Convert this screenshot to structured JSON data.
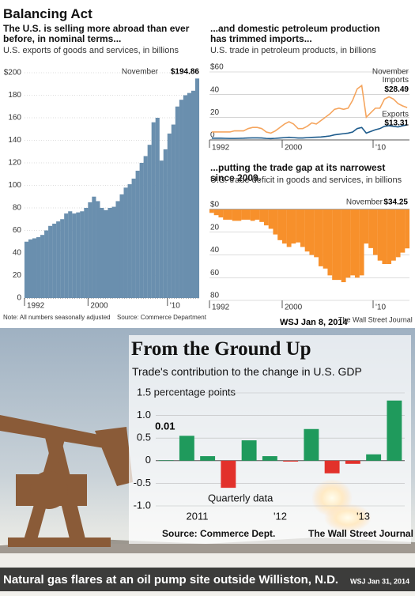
{
  "header": {
    "title": "Balancing Act",
    "note": "Note: All numbers seasonally adjusted",
    "source": "Source: Commerce Department",
    "credit": "The Wall Street Journal",
    "date": "WSJ Jan 8, 2014"
  },
  "photo": {
    "caption": "Natural gas flares at an oil pump site outside Williston, N.D.",
    "date": "WSJ Jan 31, 2014"
  },
  "chart_data": [
    {
      "type": "bar",
      "title": "The U.S. is selling more abroad than ever before, in nominal terms...",
      "subtitle": "U.S. exports of goods and services, in billions",
      "categories": [
        "1992",
        null,
        null,
        null,
        null,
        null,
        null,
        null,
        null,
        null,
        null,
        null,
        null,
        null,
        null,
        null,
        "2000",
        null,
        null,
        null,
        null,
        null,
        null,
        null,
        null,
        null,
        null,
        null,
        null,
        null,
        null,
        null,
        null,
        null,
        null,
        null,
        "'10",
        null,
        null,
        null,
        null,
        null,
        null,
        null
      ],
      "values": [
        50,
        52,
        53,
        54,
        56,
        60,
        64,
        66,
        68,
        70,
        75,
        77,
        75,
        76,
        77,
        80,
        85,
        90,
        86,
        80,
        78,
        80,
        81,
        86,
        92,
        98,
        101,
        106,
        113,
        120,
        126,
        136,
        156,
        160,
        122,
        132,
        146,
        154,
        170,
        176,
        180,
        182,
        184,
        194.86
      ],
      "value_labels": [
        null,
        null,
        null,
        null,
        null,
        null,
        null,
        null,
        null,
        null,
        null,
        null,
        null,
        null,
        null,
        null,
        null,
        null,
        null,
        null,
        null,
        null,
        null,
        null,
        null,
        null,
        null,
        null,
        null,
        null,
        null,
        null,
        null,
        null,
        null,
        null,
        null,
        null,
        null,
        null,
        null,
        null,
        null,
        "$194.86"
      ],
      "annotation": "November",
      "color": "#6a8fae",
      "ylim": [
        0,
        200
      ],
      "yticks": [
        0,
        20,
        40,
        60,
        80,
        100,
        120,
        140,
        160,
        180,
        {
          "value": 200,
          "label": "$200"
        }
      ],
      "grid": true
    },
    {
      "type": "line",
      "title": "...and domestic petroleum production has trimmed imports...",
      "subtitle": "U.S. trade in petroleum products, in billions",
      "categories": [
        "1992",
        null,
        null,
        null,
        null,
        null,
        null,
        null,
        null,
        null,
        null,
        null,
        null,
        null,
        null,
        null,
        "2000",
        null,
        null,
        null,
        null,
        null,
        null,
        null,
        null,
        null,
        null,
        null,
        null,
        null,
        null,
        null,
        null,
        null,
        null,
        null,
        "'10",
        null,
        null,
        null,
        null,
        null,
        null,
        null
      ],
      "series": [
        {
          "name": "Imports",
          "color": "#f5a55e",
          "values": [
            7,
            7,
            7,
            7,
            7,
            8,
            8,
            8,
            10,
            11,
            11,
            10,
            7,
            6,
            8,
            11,
            14,
            16,
            14,
            10,
            10,
            12,
            15,
            14,
            17,
            20,
            23,
            27,
            28,
            27,
            28,
            35,
            45,
            48,
            20,
            24,
            28,
            28,
            36,
            38,
            36,
            32,
            30,
            28.49
          ],
          "value_labels": [
            null,
            null,
            null,
            null,
            null,
            null,
            null,
            null,
            null,
            null,
            null,
            null,
            null,
            null,
            null,
            null,
            null,
            null,
            null,
            null,
            null,
            null,
            null,
            null,
            null,
            null,
            null,
            null,
            null,
            null,
            null,
            null,
            null,
            null,
            null,
            null,
            null,
            null,
            null,
            null,
            null,
            null,
            null,
            "$28.49"
          ]
        },
        {
          "name": "Exports",
          "color": "#1d5b8c",
          "values": [
            1.5,
            1.5,
            1.5,
            1.4,
            1.3,
            1.3,
            1.4,
            1.5,
            1.7,
            1.8,
            1.8,
            1.7,
            1.3,
            1.2,
            1.4,
            1.7,
            2,
            2.3,
            2,
            1.7,
            1.7,
            2,
            2.2,
            2.4,
            2.6,
            3,
            3.5,
            4.5,
            5,
            5.5,
            6,
            7,
            10,
            11,
            6,
            7.5,
            9,
            10,
            12,
            12.5,
            12,
            11.5,
            12.5,
            13.31
          ],
          "value_labels": [
            null,
            null,
            null,
            null,
            null,
            null,
            null,
            null,
            null,
            null,
            null,
            null,
            null,
            null,
            null,
            null,
            null,
            null,
            null,
            null,
            null,
            null,
            null,
            null,
            null,
            null,
            null,
            null,
            null,
            null,
            null,
            null,
            null,
            null,
            null,
            null,
            null,
            null,
            null,
            null,
            null,
            null,
            null,
            "$13.31"
          ]
        }
      ],
      "annotation": "November",
      "ylim": [
        0,
        60
      ],
      "yticks": [
        0,
        20,
        40,
        {
          "value": 60,
          "label": "$60"
        }
      ],
      "grid": true
    },
    {
      "type": "bar",
      "title": "...putting the trade gap at its narrowest since 2009.",
      "subtitle": "U.S. trade deficit in goods and services, in billions",
      "categories": [
        "1992",
        null,
        null,
        null,
        null,
        null,
        null,
        null,
        null,
        null,
        null,
        null,
        null,
        null,
        null,
        null,
        "2000",
        null,
        null,
        null,
        null,
        null,
        null,
        null,
        null,
        null,
        null,
        null,
        null,
        null,
        null,
        null,
        null,
        null,
        null,
        null,
        "'10",
        null,
        null,
        null,
        null,
        null,
        null,
        null
      ],
      "values": [
        3,
        5,
        7,
        9,
        9,
        10,
        10,
        9,
        9,
        10,
        9,
        11,
        14,
        17,
        22,
        27,
        30,
        33,
        30,
        29,
        33,
        37,
        40,
        42,
        50,
        52,
        58,
        62,
        62,
        64,
        60,
        58,
        60,
        58,
        30,
        34,
        40,
        45,
        48,
        48,
        45,
        42,
        38,
        34.25
      ],
      "value_labels": [
        null,
        null,
        null,
        null,
        null,
        null,
        null,
        null,
        null,
        null,
        null,
        null,
        null,
        null,
        null,
        null,
        null,
        null,
        null,
        null,
        null,
        null,
        null,
        null,
        null,
        null,
        null,
        null,
        null,
        null,
        null,
        null,
        null,
        null,
        null,
        null,
        null,
        null,
        null,
        null,
        null,
        null,
        null,
        "$34.25"
      ],
      "annotation": "November",
      "color": "#f7902b",
      "y_inverted": true,
      "ylim": [
        0,
        80
      ],
      "yticks": [
        {
          "value": 0,
          "label": "$0"
        },
        20,
        40,
        60,
        80
      ],
      "grid": true
    },
    {
      "type": "bar",
      "title": "From the Ground Up",
      "subtitle": "Trade's contribution to the change in U.S. GDP",
      "categories": [
        null,
        "2011",
        null,
        null,
        null,
        "'12",
        null,
        null,
        null,
        "'13",
        null,
        null
      ],
      "values": [
        0.01,
        0.55,
        0.1,
        -0.6,
        0.45,
        0.1,
        -0.02,
        0.7,
        -0.28,
        -0.07,
        0.14,
        1.33
      ],
      "value_labels": [
        "0.01",
        null,
        null,
        null,
        null,
        null,
        null,
        null,
        null,
        null,
        null,
        null
      ],
      "annotation": "Quarterly data",
      "source": "Source: Commerce Dept.",
      "credit": "The Wall Street Journal",
      "color": "#1f9a5c",
      "negative_color": "#e2312b",
      "ylim": [
        -1,
        1.5
      ],
      "yticks": [
        {
          "value": -1.0,
          "label": "-1.0"
        },
        -0.5,
        0,
        0.5,
        {
          "value": 1.0,
          "label": "1.0"
        },
        {
          "value": 1.5,
          "label": "1.5 percentage points"
        }
      ],
      "grid": true
    }
  ]
}
